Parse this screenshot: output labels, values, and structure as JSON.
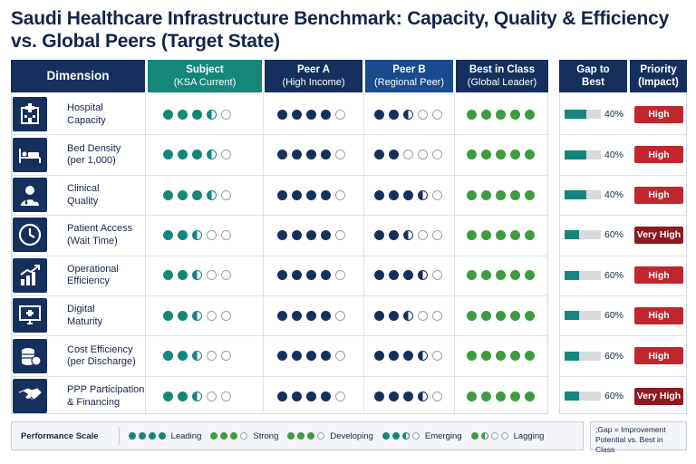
{
  "title": "Saudi Healthcare Infrastructure Benchmark: Capacity, Quality & Efficiency vs. Global Peers (Target State)",
  "columns": {
    "dimension": "Dimension",
    "subject": {
      "line1": "Subject",
      "line2": "(KSA Current)"
    },
    "peer_a": {
      "line1": "Peer A",
      "line2": "(High Income)"
    },
    "peer_b": {
      "line1": "Peer B",
      "line2": "(Regional Peer)"
    },
    "best": {
      "line1": "Best in Class",
      "line2": "(Global Leader)"
    },
    "gap": {
      "line1": "Gap to",
      "line2": "Best"
    },
    "priority": {
      "line1": "Priority",
      "line2": "(Impact)"
    }
  },
  "colors": {
    "navy": "#16305e",
    "teal": "#15867a",
    "blue": "#184c8f",
    "green": "#3f9b3f",
    "red_high": "#c2262d",
    "red_very_high": "#8e1a22"
  },
  "chart_data": {
    "type": "table",
    "rating_scale_max": 5,
    "rows": [
      {
        "dimension": [
          "Hospital",
          "Capacity"
        ],
        "icon": "hospital-icon",
        "subject": 3.5,
        "peer_a": 4,
        "peer_b": 2.5,
        "best": 5,
        "gap_pct": 40,
        "gap_label": "40%",
        "priority": "High"
      },
      {
        "dimension": [
          "Bed Density",
          "(per 1,000)"
        ],
        "icon": "bed-icon",
        "subject": 3.5,
        "peer_a": 4,
        "peer_b": 2,
        "best": 5,
        "gap_pct": 40,
        "gap_label": "40%",
        "priority": "High"
      },
      {
        "dimension": [
          "Clinical",
          "Quality"
        ],
        "icon": "doctor-icon",
        "subject": 3.5,
        "peer_a": 4,
        "peer_b": 3.5,
        "best": 5,
        "gap_pct": 40,
        "gap_label": "40%",
        "priority": "High"
      },
      {
        "dimension": [
          "Patient Access",
          "(Wait Time)"
        ],
        "icon": "clock-icon",
        "subject": 2.5,
        "peer_a": 4,
        "peer_b": 2.5,
        "best": 5,
        "gap_pct": 60,
        "gap_label": "60%",
        "priority": "Very High"
      },
      {
        "dimension": [
          "Operational",
          "Efficiency"
        ],
        "icon": "growth-chart-icon",
        "subject": 2.5,
        "peer_a": 4,
        "peer_b": 3.5,
        "best": 5,
        "gap_pct": 60,
        "gap_label": "60%",
        "priority": "High"
      },
      {
        "dimension": [
          "Digital",
          "Maturity"
        ],
        "icon": "monitor-medical-icon",
        "subject": 2.5,
        "peer_a": 4,
        "peer_b": 2.5,
        "best": 5,
        "gap_pct": 60,
        "gap_label": "60%",
        "priority": "High"
      },
      {
        "dimension": [
          "Cost Efficiency",
          "(per Discharge)"
        ],
        "icon": "coins-icon",
        "subject": 2.5,
        "peer_a": 4,
        "peer_b": 3.5,
        "best": 5,
        "gap_pct": 60,
        "gap_label": "60%",
        "priority": "High"
      },
      {
        "dimension": [
          "PPP Participation",
          "& Financing"
        ],
        "icon": "handshake-icon",
        "subject": 2.5,
        "peer_a": 4,
        "peer_b": 3.5,
        "best": 5,
        "gap_pct": 60,
        "gap_label": "60%",
        "priority": "Very High"
      }
    ]
  },
  "legend": {
    "title": "Performance Scale",
    "items": [
      {
        "label": "Leading",
        "value": 4
      },
      {
        "label": "Strong",
        "value": 3
      },
      {
        "label": "Developing",
        "value": 3
      },
      {
        "label": "Emerging",
        "value": 2.5
      },
      {
        "label": "Lagging",
        "value": 1.5
      }
    ],
    "note": ";Gap = Improvement Potential vs. Best in Class"
  }
}
